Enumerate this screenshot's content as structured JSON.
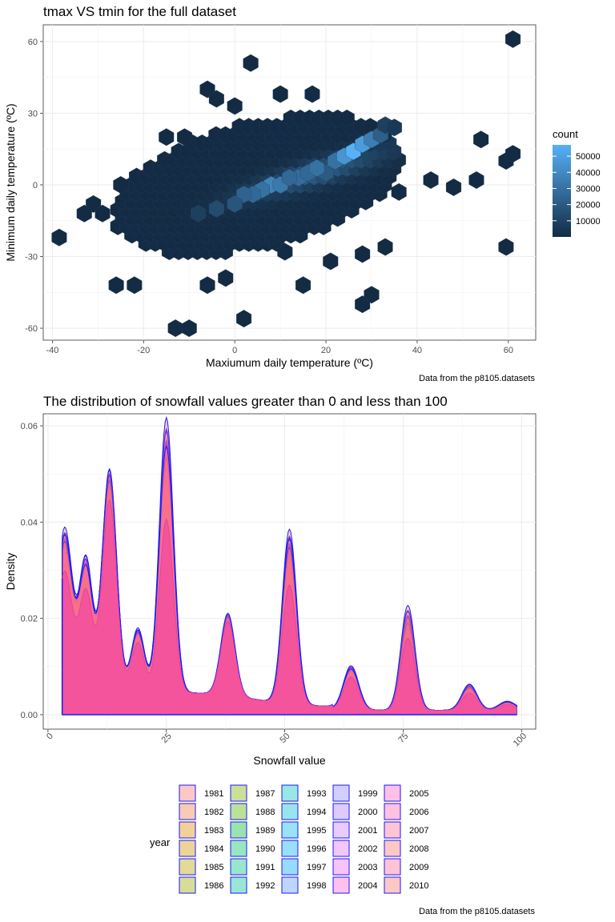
{
  "chart_data": [
    {
      "type": "hexbin",
      "title": "tmax VS tmin for the full dataset",
      "xlabel": "Maxiumum daily temperature (ºC)",
      "ylabel": "Minimum daily temperature (ºC)",
      "caption": "Data from the p8105.datasets",
      "xlim": [
        -42,
        66
      ],
      "ylim": [
        -65,
        67
      ],
      "xticks": [
        -40,
        -20,
        0,
        20,
        40,
        60
      ],
      "yticks": [
        -60,
        -30,
        0,
        30,
        60
      ],
      "grid": true,
      "legend": {
        "title": "count",
        "placement": "right",
        "breaks": [
          10000,
          20000,
          30000,
          40000,
          50000
        ],
        "range": [
          1,
          57000
        ],
        "colors": {
          "low": "#132B43",
          "high": "#56B1F7"
        }
      },
      "cells": [
        {
          "x": -38.5,
          "y": -22,
          "count": 40
        },
        {
          "x": -31,
          "y": -8,
          "count": 60
        },
        {
          "x": -33,
          "y": -12,
          "count": 120
        },
        {
          "x": -29,
          "y": -12,
          "count": 200
        },
        {
          "x": -15,
          "y": 20,
          "count": 300
        },
        {
          "x": -11,
          "y": 20,
          "count": 250
        },
        {
          "x": -25,
          "y": 0,
          "count": 400
        },
        {
          "x": -6,
          "y": 40,
          "count": 60
        },
        {
          "x": -4,
          "y": 36,
          "count": 80
        },
        {
          "x": 0,
          "y": 33,
          "count": 120
        },
        {
          "x": 3.5,
          "y": 51,
          "count": 20
        },
        {
          "x": 10,
          "y": 38,
          "count": 400
        },
        {
          "x": 17,
          "y": 38,
          "count": 600
        },
        {
          "x": 20,
          "y": 5,
          "count": 20000
        },
        {
          "x": 22,
          "y": 10,
          "count": 30000
        },
        {
          "x": 24,
          "y": 12,
          "count": 45000
        },
        {
          "x": 26,
          "y": 14,
          "count": 57000
        },
        {
          "x": 28,
          "y": 17,
          "count": 48000
        },
        {
          "x": 30,
          "y": 19,
          "count": 35000
        },
        {
          "x": 32,
          "y": 21,
          "count": 22000
        },
        {
          "x": 8,
          "y": 0,
          "count": 38000
        },
        {
          "x": 10,
          "y": 0,
          "count": 33000
        },
        {
          "x": 6,
          "y": -2,
          "count": 30000
        },
        {
          "x": 4,
          "y": -4,
          "count": 26000
        },
        {
          "x": 2,
          "y": -4,
          "count": 24000
        },
        {
          "x": 14,
          "y": 3,
          "count": 28000
        },
        {
          "x": 16,
          "y": 5,
          "count": 26000
        },
        {
          "x": 18,
          "y": 7,
          "count": 30000
        },
        {
          "x": 12,
          "y": 3,
          "count": 26000
        },
        {
          "x": 33,
          "y": 25,
          "count": 9000
        },
        {
          "x": 35,
          "y": 24,
          "count": 6000
        },
        {
          "x": 0,
          "y": -8,
          "count": 18000
        },
        {
          "x": -4,
          "y": -10,
          "count": 14000
        },
        {
          "x": -8,
          "y": -12,
          "count": 9000
        },
        {
          "x": 43,
          "y": 2,
          "count": 60
        },
        {
          "x": 48,
          "y": -1,
          "count": 40
        },
        {
          "x": 53,
          "y": 2,
          "count": 30
        },
        {
          "x": 54,
          "y": 19,
          "count": 20
        },
        {
          "x": 59.5,
          "y": 10,
          "count": 20
        },
        {
          "x": 61,
          "y": 13,
          "count": 20
        },
        {
          "x": 59.5,
          "y": -26,
          "count": 20
        },
        {
          "x": 61,
          "y": 61,
          "count": 10
        },
        {
          "x": 36,
          "y": -3,
          "count": 200
        },
        {
          "x": 33,
          "y": -26,
          "count": 60
        },
        {
          "x": 28,
          "y": -29,
          "count": 40
        },
        {
          "x": 28,
          "y": -50,
          "count": 20
        },
        {
          "x": 30,
          "y": -46,
          "count": 20
        },
        {
          "x": 21,
          "y": -32,
          "count": 60
        },
        {
          "x": 15,
          "y": -42,
          "count": 40
        },
        {
          "x": 11,
          "y": -28,
          "count": 200
        },
        {
          "x": 2,
          "y": -56,
          "count": 20
        },
        {
          "x": -13,
          "y": -60,
          "count": 20
        },
        {
          "x": -10,
          "y": -60,
          "count": 20
        },
        {
          "x": -26,
          "y": -42,
          "count": 200
        },
        {
          "x": -22,
          "y": -42,
          "count": 300
        },
        {
          "x": -6,
          "y": -42,
          "count": 200
        },
        {
          "x": -2,
          "y": -39,
          "count": 100
        }
      ]
    },
    {
      "type": "area",
      "title": "The distribution of snowfall values greater than 0 and less than 100",
      "xlabel": "Snowfall value",
      "ylabel": "Density",
      "caption": "Data from the p8105.datasets",
      "xlim": [
        -1,
        103
      ],
      "ylim": [
        -0.003,
        0.0625
      ],
      "xticks": [
        0,
        25,
        50,
        75,
        100
      ],
      "yticks": [
        0.0,
        0.02,
        0.04,
        0.06
      ],
      "ytick_labels": [
        "0.00",
        "0.02",
        "0.04",
        "0.06"
      ],
      "grid": true,
      "legend": {
        "title": "year",
        "placement": "bottom",
        "entries": [
          "1981",
          "1982",
          "1983",
          "1984",
          "1985",
          "1986",
          "1987",
          "1988",
          "1989",
          "1990",
          "1991",
          "1992",
          "1993",
          "1994",
          "1995",
          "1996",
          "1997",
          "1998",
          "1999",
          "2000",
          "2001",
          "2002",
          "2003",
          "2004",
          "2005",
          "2006",
          "2007",
          "2008",
          "2009",
          "2010"
        ],
        "colors": [
          "#F8766D",
          "#F17D4A",
          "#E38900",
          "#D09400",
          "#B89F00",
          "#9EA700",
          "#7FAE00",
          "#54B400",
          "#00BA38",
          "#00BD5F",
          "#00C082",
          "#00C1A0",
          "#00C0B8",
          "#00BDCF",
          "#00B8E3",
          "#00B0F6",
          "#00A5FF",
          "#5C96FF",
          "#8F87FF",
          "#AE7BFF",
          "#C77CFF",
          "#DB72FB",
          "#ED68ED",
          "#FB61D7",
          "#FF61C3",
          "#FF64B0",
          "#FF6C91",
          "#F8766D",
          "#FF6C91",
          "#F8766D"
        ]
      },
      "peaks": [
        {
          "x": 3.5,
          "min": 0.023,
          "max": 0.0355
        },
        {
          "x": 8,
          "min": 0.019,
          "max": 0.027
        },
        {
          "x": 13,
          "min": 0.036,
          "max": 0.0465
        },
        {
          "x": 19,
          "min": 0.01,
          "max": 0.0142
        },
        {
          "x": 25,
          "min": 0.034,
          "max": 0.0593
        },
        {
          "x": 38,
          "min": 0.0145,
          "max": 0.0173
        },
        {
          "x": 51,
          "min": 0.021,
          "max": 0.037
        },
        {
          "x": 64,
          "min": 0.0065,
          "max": 0.0093
        },
        {
          "x": 76,
          "min": 0.0108,
          "max": 0.0222
        },
        {
          "x": 89,
          "min": 0.0028,
          "max": 0.0058
        },
        {
          "x": 97,
          "min": 0.0011,
          "max": 0.002
        }
      ]
    }
  ]
}
